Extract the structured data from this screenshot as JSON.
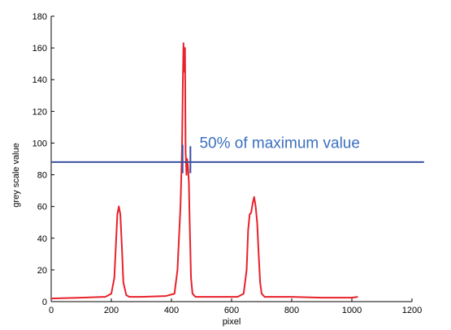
{
  "chart_data": {
    "type": "line",
    "title": "",
    "xlabel": "pixel",
    "ylabel": "grey scale value",
    "xlim": [
      0,
      1200
    ],
    "ylim": [
      0,
      180
    ],
    "xticks": [
      0,
      200,
      400,
      600,
      800,
      1000,
      1200
    ],
    "yticks": [
      0,
      20,
      40,
      60,
      80,
      100,
      120,
      140,
      160,
      180
    ],
    "grid": false,
    "series": [
      {
        "color": "#e8212b",
        "x": [
          0,
          100,
          180,
          200,
          210,
          215,
          220,
          225,
          230,
          235,
          240,
          250,
          260,
          300,
          380,
          410,
          420,
          430,
          435,
          438,
          440,
          442,
          445,
          447,
          450,
          452,
          455,
          458,
          460,
          465,
          470,
          480,
          500,
          550,
          620,
          640,
          650,
          655,
          660,
          665,
          670,
          675,
          680,
          685,
          690,
          695,
          700,
          710,
          720,
          800,
          900,
          1000,
          1020
        ],
        "y": [
          2,
          2.5,
          3,
          5,
          15,
          35,
          55,
          60,
          55,
          35,
          12,
          4,
          3,
          3,
          3.5,
          5,
          20,
          60,
          95,
          140,
          163,
          145,
          160,
          95,
          80,
          90,
          85,
          75,
          55,
          15,
          5,
          3,
          3,
          3,
          3,
          5,
          20,
          45,
          55,
          56,
          62,
          66,
          60,
          50,
          30,
          12,
          5,
          3,
          3,
          3,
          2.5,
          2.5,
          3
        ]
      },
      {
        "color": "#3a4fa0",
        "x": [
          0,
          1240
        ],
        "y": [
          88,
          88
        ]
      },
      {
        "color": "#3a4fa0",
        "x": [
          437,
          437
        ],
        "y": [
          81,
          99
        ]
      },
      {
        "color": "#3a4fa0",
        "x": [
          463,
          463
        ],
        "y": [
          81,
          98
        ]
      }
    ],
    "annotations": [
      {
        "text": "50% of maximum value",
        "x": 760,
        "y": 97,
        "color": "#3a6fc0"
      }
    ]
  },
  "colors": {
    "signal": "#e8212b",
    "threshold": "#3a4fa0",
    "annotation": "#3a6fc0"
  }
}
